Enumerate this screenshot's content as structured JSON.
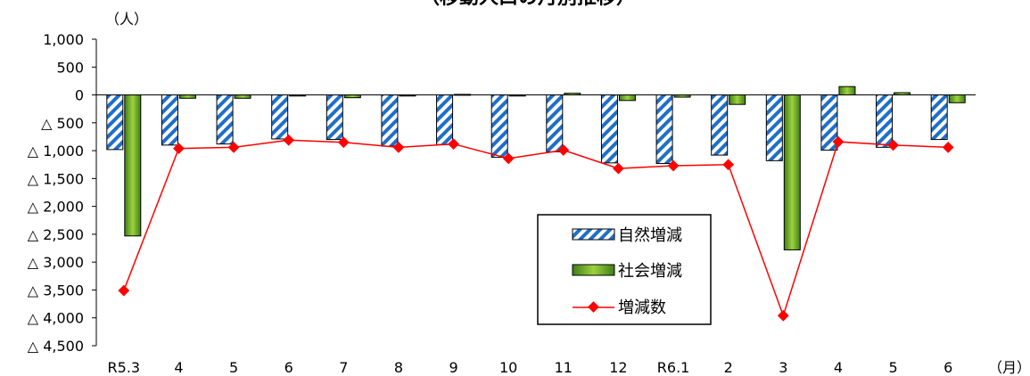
{
  "chart_data": {
    "type": "bar",
    "title": "（移動人口の月別推移）",
    "y_unit_label": "（人）",
    "x_unit_label": "（月）",
    "categories": [
      "R5.3",
      "4",
      "5",
      "6",
      "7",
      "8",
      "9",
      "10",
      "11",
      "12",
      "R6.1",
      "2",
      "3",
      "4",
      "5",
      "6"
    ],
    "ylim": [
      -4500,
      1000
    ],
    "y_ticks": [
      {
        "value": 1000,
        "label": "1,000"
      },
      {
        "value": 500,
        "label": "500"
      },
      {
        "value": 0,
        "label": "0"
      },
      {
        "value": -500,
        "label": "△ 500"
      },
      {
        "value": -1000,
        "label": "△ 1,000"
      },
      {
        "value": -1500,
        "label": "△ 1,500"
      },
      {
        "value": -2000,
        "label": "△ 2,000"
      },
      {
        "value": -2500,
        "label": "△ 2,500"
      },
      {
        "value": -3000,
        "label": "△ 3,000"
      },
      {
        "value": -3500,
        "label": "△ 3,500"
      },
      {
        "value": -4000,
        "label": "△ 4,000"
      },
      {
        "value": -4500,
        "label": "△ 4,500"
      }
    ],
    "series": [
      {
        "name": "自然増減",
        "kind": "bar",
        "style": "hatched",
        "color": "#1f6fc9",
        "values": [
          -980,
          -900,
          -880,
          -790,
          -800,
          -920,
          -890,
          -1120,
          -1020,
          -1220,
          -1230,
          -1080,
          -1180,
          -990,
          -940,
          -800
        ]
      },
      {
        "name": "社会増減",
        "kind": "bar",
        "style": "solid",
        "color": "#5aa02c",
        "values": [
          -2530,
          -60,
          -60,
          -20,
          -50,
          -20,
          10,
          -20,
          30,
          -100,
          -40,
          -170,
          -2780,
          150,
          40,
          -140
        ]
      },
      {
        "name": "増減数",
        "kind": "line",
        "color": "#ff0000",
        "values": [
          -3510,
          -960,
          -940,
          -810,
          -850,
          -940,
          -880,
          -1140,
          -990,
          -1320,
          -1270,
          -1250,
          -3960,
          -840,
          -900,
          -940
        ]
      }
    ],
    "legend_position": "lower-right",
    "grid": false
  }
}
